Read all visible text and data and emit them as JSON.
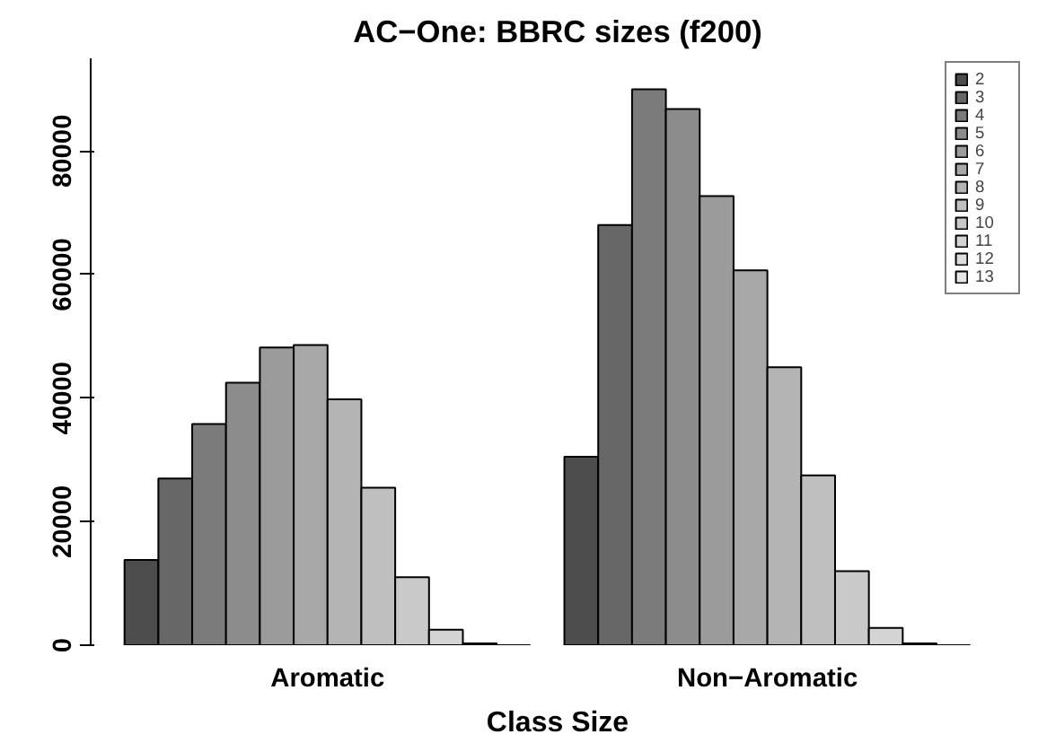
{
  "chart_data": {
    "type": "bar",
    "title": "AC−One: BBRC sizes (f200)",
    "xlabel": "Class Size",
    "categories": [
      "Aromatic",
      "Non−Aromatic"
    ],
    "ylim": [
      0,
      95000
    ],
    "yticks": [
      0,
      20000,
      40000,
      60000,
      80000
    ],
    "grid": false,
    "legend": "top right",
    "series": [
      {
        "name": "2",
        "color": "#4d4d4d",
        "values": [
          13800,
          30500
        ]
      },
      {
        "name": "3",
        "color": "#676767",
        "values": [
          27000,
          68000
        ]
      },
      {
        "name": "4",
        "color": "#7b7b7b",
        "values": [
          35800,
          90000
        ]
      },
      {
        "name": "5",
        "color": "#8c8c8c",
        "values": [
          42500,
          86800
        ]
      },
      {
        "name": "6",
        "color": "#9b9b9b",
        "values": [
          48200,
          72700
        ]
      },
      {
        "name": "7",
        "color": "#a8a8a8",
        "values": [
          48600,
          60700
        ]
      },
      {
        "name": "8",
        "color": "#b4b4b4",
        "values": [
          39800,
          45000
        ]
      },
      {
        "name": "9",
        "color": "#bfbfbf",
        "values": [
          25500,
          27500
        ]
      },
      {
        "name": "10",
        "color": "#c9c9c9",
        "values": [
          11000,
          12000
        ]
      },
      {
        "name": "11",
        "color": "#d4d4d4",
        "values": [
          2500,
          2800
        ]
      },
      {
        "name": "12",
        "color": "#dddddd",
        "values": [
          300,
          300
        ]
      },
      {
        "name": "13",
        "color": "#e6e6e6",
        "values": [
          null,
          null
        ]
      }
    ]
  }
}
